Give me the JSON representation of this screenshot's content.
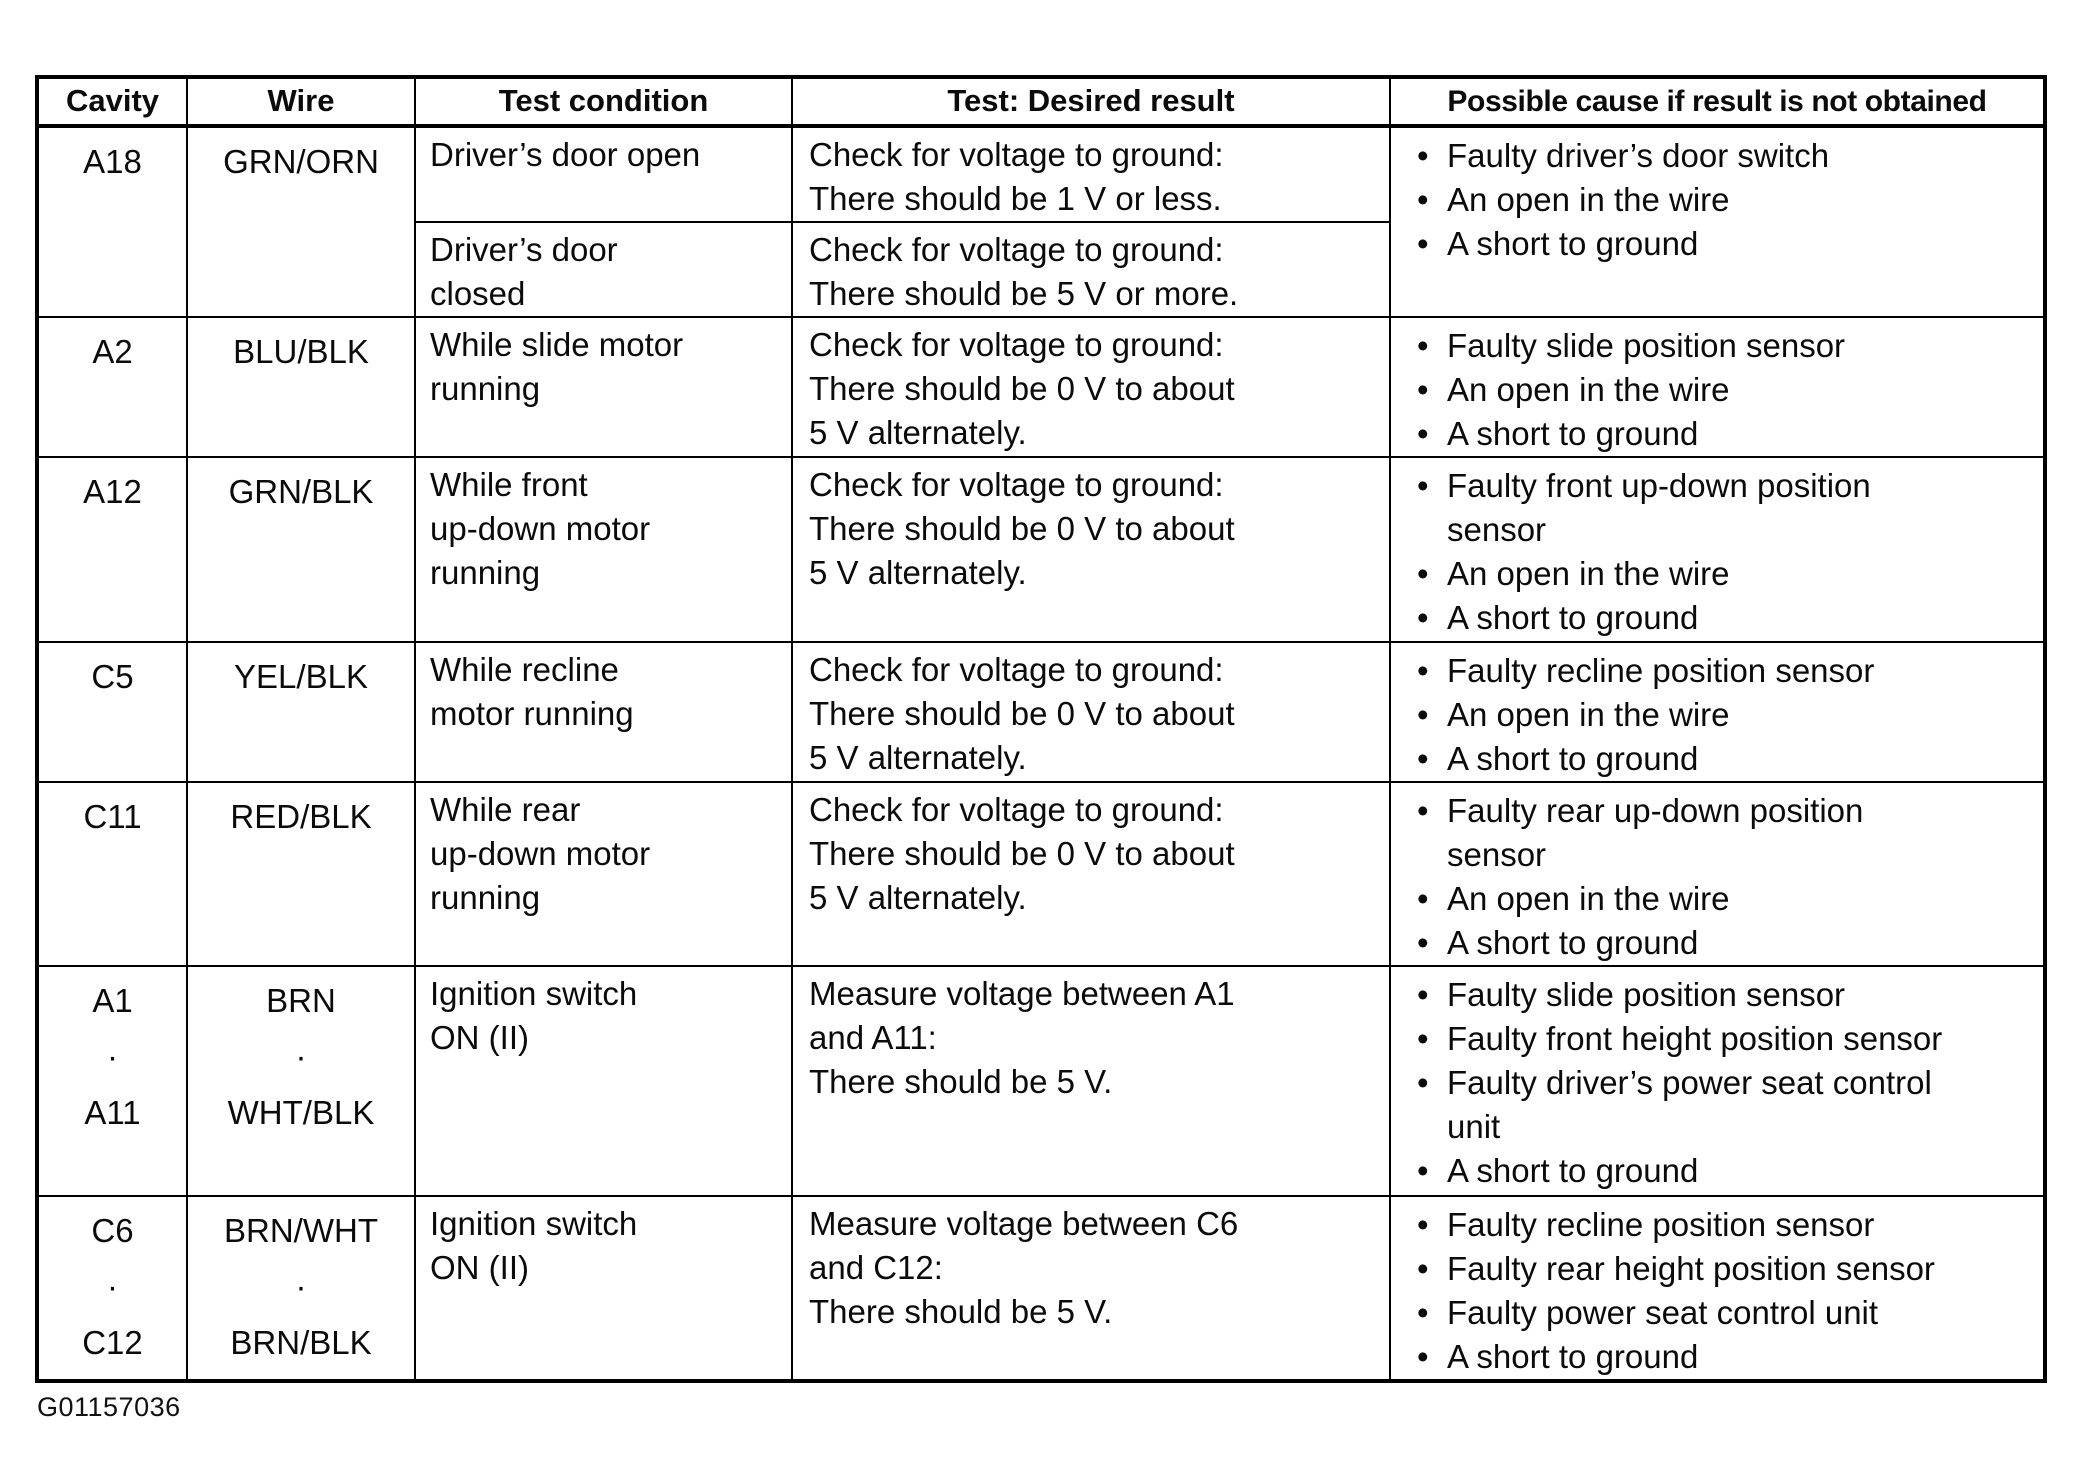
{
  "table": {
    "headers": [
      "Cavity",
      "Wire",
      "Test condition",
      "Test: Desired result",
      "Possible cause if result is not obtained"
    ],
    "rows": [
      {
        "cavity": [
          "A18"
        ],
        "wire": [
          "GRN/ORN"
        ],
        "sub": [
          {
            "condition": [
              "Driver’s door open"
            ],
            "result": [
              "Check for voltage to ground:",
              "There should be 1 V or less."
            ]
          },
          {
            "condition": [
              "Driver’s door",
              "closed"
            ],
            "result": [
              "Check for voltage to ground:",
              "There should be 5 V or more."
            ]
          }
        ],
        "causes": [
          [
            "Faulty driver’s door switch"
          ],
          [
            "An open in the wire"
          ],
          [
            "A short to ground"
          ]
        ]
      },
      {
        "cavity": [
          "A2"
        ],
        "wire": [
          "BLU/BLK"
        ],
        "condition": [
          "While slide motor",
          "running"
        ],
        "result": [
          "Check for voltage to ground:",
          "There should be 0 V to about",
          "5 V alternately."
        ],
        "causes": [
          [
            "Faulty slide position sensor"
          ],
          [
            "An open in the wire"
          ],
          [
            "A short to ground"
          ]
        ]
      },
      {
        "cavity": [
          "A12"
        ],
        "wire": [
          "GRN/BLK"
        ],
        "condition": [
          "While front",
          "up-down motor",
          "running"
        ],
        "result": [
          "Check for voltage to ground:",
          "There should be 0 V to about",
          "5 V alternately."
        ],
        "causes": [
          [
            "Faulty front up-down position",
            "sensor"
          ],
          [
            "An open in the wire"
          ],
          [
            "A short to ground"
          ]
        ]
      },
      {
        "cavity": [
          "C5"
        ],
        "wire": [
          "YEL/BLK"
        ],
        "condition": [
          "While recline",
          "motor running"
        ],
        "result": [
          "Check for voltage to ground:",
          "There should be 0 V to about",
          "5 V alternately."
        ],
        "causes": [
          [
            "Faulty recline position sensor"
          ],
          [
            "An open in the wire"
          ],
          [
            "A short to ground"
          ]
        ]
      },
      {
        "cavity": [
          "C11"
        ],
        "wire": [
          "RED/BLK"
        ],
        "condition": [
          "While rear",
          "up-down motor",
          "running"
        ],
        "result": [
          "Check for voltage to ground:",
          "There should be 0 V to about",
          "5 V alternately."
        ],
        "causes": [
          [
            "Faulty rear up-down position",
            "sensor"
          ],
          [
            "An open in the wire"
          ],
          [
            "A short to ground"
          ]
        ]
      },
      {
        "cavity": [
          "A1",
          "·",
          "A11"
        ],
        "wire": [
          "BRN",
          "·",
          "WHT/BLK"
        ],
        "condition": [
          "Ignition switch",
          "ON (II)"
        ],
        "result": [
          "Measure voltage between A1",
          "and A11:",
          "There should be 5 V."
        ],
        "causes": [
          [
            "Faulty slide position sensor"
          ],
          [
            "Faulty front height position sensor"
          ],
          [
            "Faulty driver’s power seat control",
            "unit"
          ],
          [
            "A short to ground"
          ]
        ]
      },
      {
        "cavity": [
          "C6",
          "·",
          "C12"
        ],
        "wire": [
          "BRN/WHT",
          "·",
          "BRN/BLK"
        ],
        "condition": [
          "Ignition switch",
          "ON (II)"
        ],
        "result": [
          "Measure voltage between C6",
          "and C12:",
          "There should be 5 V."
        ],
        "causes": [
          [
            "Faulty recline position sensor"
          ],
          [
            "Faulty rear height position sensor"
          ],
          [
            "Faulty power seat control unit"
          ],
          [
            "A short to ground"
          ]
        ]
      }
    ]
  },
  "footer": {
    "figure_id": "G01157036"
  }
}
